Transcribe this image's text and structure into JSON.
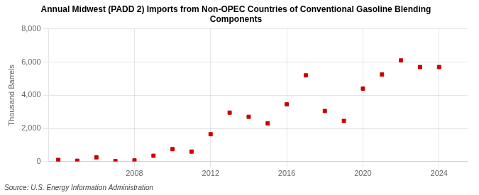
{
  "chart_data": {
    "type": "scatter",
    "title": "Annual Midwest (PADD 2) Imports from Non-OPEC Countries of Conventional Gasoline Blending\nComponents",
    "ylabel": "Thousand Barrels",
    "source": "Source: U.S. Energy Information Administration",
    "x": [
      2004,
      2005,
      2006,
      2007,
      2008,
      2009,
      2010,
      2011,
      2012,
      2013,
      2014,
      2015,
      2016,
      2017,
      2018,
      2019,
      2020,
      2021,
      2022,
      2023,
      2024
    ],
    "values": [
      100,
      50,
      250,
      30,
      70,
      350,
      750,
      600,
      1650,
      2950,
      2700,
      2300,
      3450,
      5200,
      3050,
      2450,
      4400,
      5250,
      6100,
      5700,
      5700
    ],
    "color": "#cc0000",
    "marker": "square",
    "xlim": [
      2003.5,
      2025.5
    ],
    "xticks": [
      2008,
      2012,
      2016,
      2020,
      2024
    ],
    "ylim": [
      0,
      8000
    ],
    "yticks": [
      0,
      {
        "value": 2000,
        "label": "2,000"
      },
      {
        "value": 4000,
        "label": "4,000"
      },
      {
        "value": 6000,
        "label": "6,000"
      },
      {
        "value": 8000,
        "label": "8,000"
      }
    ],
    "grid": true
  }
}
